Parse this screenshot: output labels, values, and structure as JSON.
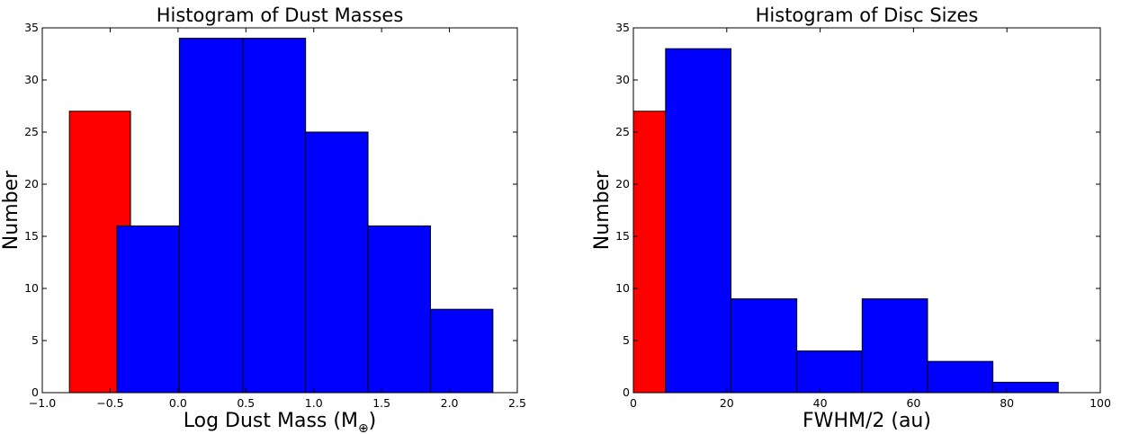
{
  "chart_data": [
    {
      "type": "bar",
      "title": "Histogram of Dust Masses",
      "xlabel": "Log Dust Mass (M",
      "xlabel_subscript": "⊕",
      "xlabel_suffix": ")",
      "ylabel": "Number",
      "xlim": [
        -1.0,
        2.5
      ],
      "ylim": [
        0,
        35
      ],
      "xticks": [
        -1.0,
        -0.5,
        0.0,
        0.5,
        1.0,
        1.5,
        2.0,
        2.5
      ],
      "xtick_labels": [
        "−1.0",
        "−0.5",
        "0.0",
        "0.5",
        "1.0",
        "1.5",
        "2.0",
        "2.5"
      ],
      "yticks": [
        0,
        5,
        10,
        15,
        20,
        25,
        30,
        35
      ],
      "ytick_labels": [
        "0",
        "5",
        "10",
        "15",
        "20",
        "25",
        "30",
        "35"
      ],
      "grid": false,
      "series": [
        {
          "color": "#ff0000",
          "bins": [
            {
              "x0": -0.8,
              "x1": -0.35,
              "value": 27
            }
          ]
        },
        {
          "color": "#0000ff",
          "bins": [
            {
              "x0": -0.45,
              "x1": 0.01,
              "value": 16
            },
            {
              "x0": 0.01,
              "x1": 0.48,
              "value": 34
            },
            {
              "x0": 0.48,
              "x1": 0.94,
              "value": 34
            },
            {
              "x0": 0.94,
              "x1": 1.4,
              "value": 25
            },
            {
              "x0": 1.4,
              "x1": 1.86,
              "value": 16
            },
            {
              "x0": 1.86,
              "x1": 2.32,
              "value": 8
            }
          ]
        }
      ]
    },
    {
      "type": "bar",
      "title": "Histogram of Disc Sizes",
      "xlabel": "FWHM/2 (au)",
      "ylabel": "Number",
      "xlim": [
        0,
        100
      ],
      "ylim": [
        0,
        35
      ],
      "xticks": [
        0,
        20,
        40,
        60,
        80,
        100
      ],
      "xtick_labels": [
        "0",
        "20",
        "40",
        "60",
        "80",
        "100"
      ],
      "yticks": [
        0,
        5,
        10,
        15,
        20,
        25,
        30,
        35
      ],
      "ytick_labels": [
        "0",
        "5",
        "10",
        "15",
        "20",
        "25",
        "30",
        "35"
      ],
      "grid": false,
      "series": [
        {
          "color": "#ff0000",
          "bins": [
            {
              "x0": 0,
              "x1": 6.9,
              "value": 27
            }
          ]
        },
        {
          "color": "#0000ff",
          "bins": [
            {
              "x0": 6.9,
              "x1": 20.9,
              "value": 33
            },
            {
              "x0": 20.9,
              "x1": 35.0,
              "value": 9
            },
            {
              "x0": 35.0,
              "x1": 49.0,
              "value": 4
            },
            {
              "x0": 49.0,
              "x1": 63.0,
              "value": 9
            },
            {
              "x0": 63.0,
              "x1": 77.0,
              "value": 3
            },
            {
              "x0": 77.0,
              "x1": 91.0,
              "value": 1
            }
          ]
        }
      ]
    }
  ]
}
